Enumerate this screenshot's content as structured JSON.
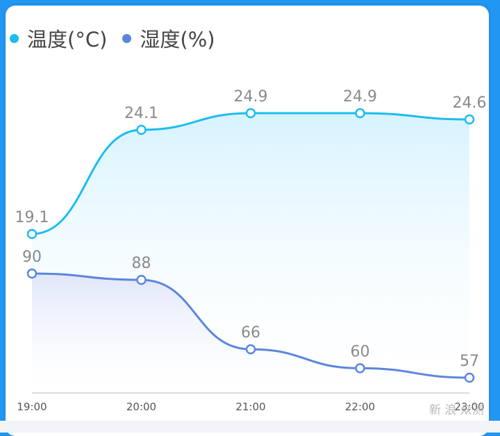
{
  "chart_data": {
    "type": "line",
    "categories": [
      "19:00",
      "20:00",
      "21:00",
      "22:00",
      "23:00"
    ],
    "series": [
      {
        "name": "温度(°C)",
        "values": [
          19.1,
          24.1,
          24.9,
          24.9,
          24.6
        ],
        "color": "#1cbcf0"
      },
      {
        "name": "湿度(%)",
        "values": [
          90,
          88,
          66,
          60,
          57
        ],
        "color": "#5b86dc"
      }
    ],
    "legend_position": "top-left",
    "grid": false
  },
  "watermark": "新 浪 众测"
}
